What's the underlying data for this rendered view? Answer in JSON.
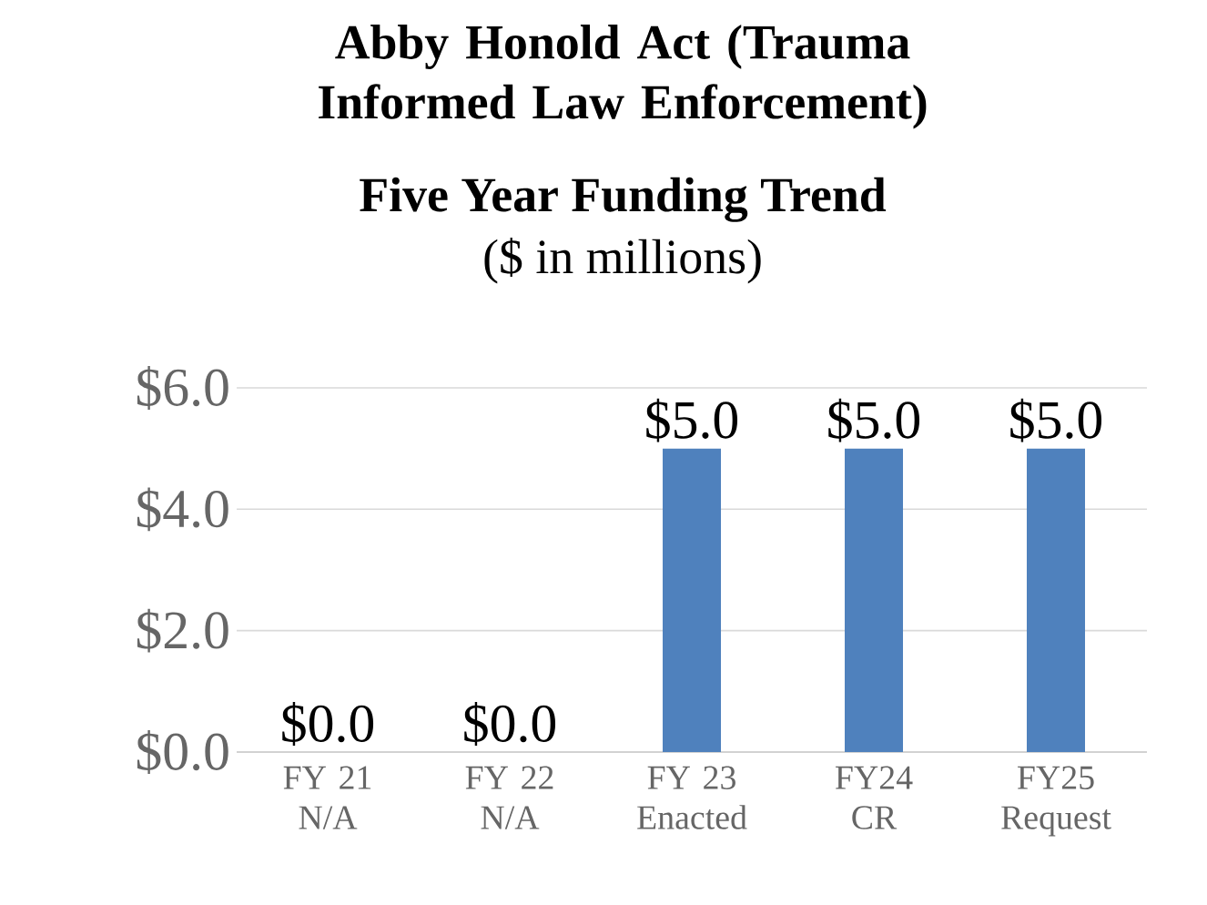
{
  "chart_data": {
    "type": "bar",
    "title": "Abby Honold Act (Trauma Informed Law Enforcement)",
    "subtitle": "Five Year Funding Trend",
    "annotations": [
      "($ in millions)"
    ],
    "categories": [
      "FY 21 N/A",
      "FY 22 N/A",
      "FY 23 Enacted",
      "FY24 CR",
      "FY25 Request"
    ],
    "values": [
      0,
      0,
      5,
      5,
      5
    ],
    "color": "#4f81bd",
    "value_labels": [
      "$0.0",
      "$0.0",
      "$5.0",
      "$5.0",
      "$5.0"
    ],
    "ylim": [
      0,
      6
    ],
    "yticks": [
      {
        "value": 0,
        "label": "$0.0"
      },
      {
        "value": 2,
        "label": "$2.0"
      },
      {
        "value": 4,
        "label": "$4.0"
      },
      {
        "value": 6,
        "label": "$6.0"
      }
    ],
    "grid": "y"
  }
}
